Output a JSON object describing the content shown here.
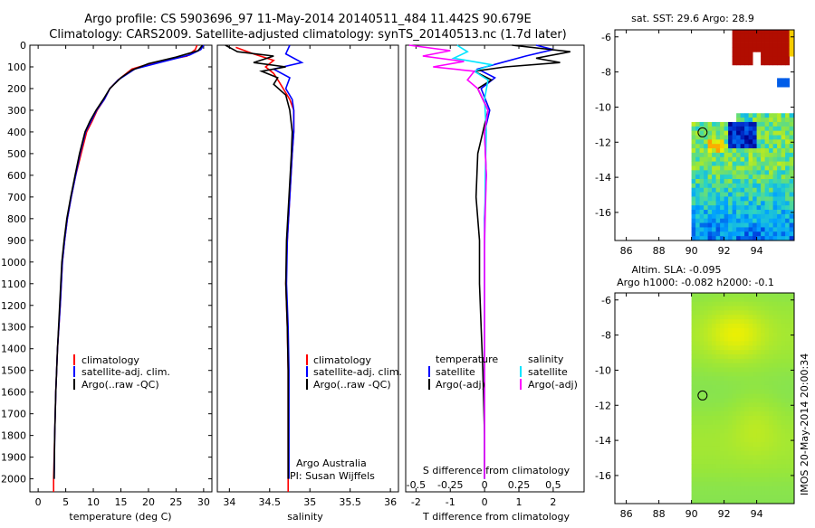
{
  "title": {
    "line1": "Argo profile: CS 5903696_97 11-May-2014 20140511_484 11.442S 90.679E",
    "line2": "Climatology: CARS2009. Satellite-adjusted climatology: synTS_20140513.nc (1.7d later)"
  },
  "colors": {
    "climatology": "#ff0000",
    "satellite": "#0000ff",
    "argo": "#000000",
    "sat_salinity": "#00e5ff",
    "argo_salinity": "#ff00ff"
  },
  "depth_axis": {
    "ylim": [
      0,
      2060
    ],
    "ticks": [
      "0",
      "100",
      "200",
      "300",
      "400",
      "500",
      "600",
      "700",
      "800",
      "900",
      "1000",
      "1100",
      "1200",
      "1300",
      "1400",
      "1500",
      "1600",
      "1700",
      "1800",
      "1900",
      "2000"
    ]
  },
  "legend": {
    "climatology": "climatology",
    "satellite_adj": "satellite-adj. clim.",
    "argo_raw": "Argo(..raw -QC)",
    "temperature": "temperature",
    "salinity": "salinity",
    "satellite": "satellite",
    "argo_adj": "Argo(-adj)"
  },
  "credit": {
    "line1": "Argo Australia",
    "line2": "PI: Susan Wijffels"
  },
  "chart_data": [
    {
      "type": "line",
      "name": "temperature-profile",
      "xlabel": "temperature (deg C)",
      "ylabel": "depth",
      "xlim": [
        -1.5,
        31.5
      ],
      "ylim": [
        0,
        2060
      ],
      "xticks": [
        0,
        5,
        10,
        15,
        20,
        25,
        30
      ],
      "series": [
        {
          "name": "climatology",
          "color": "#ff0000",
          "points": [
            [
              28.8,
              0
            ],
            [
              28.5,
              20
            ],
            [
              27,
              50
            ],
            [
              21,
              80
            ],
            [
              17,
              110
            ],
            [
              14.5,
              160
            ],
            [
              13,
              200
            ],
            [
              12,
              250
            ],
            [
              10.7,
              300
            ],
            [
              9.8,
              350
            ],
            [
              8.8,
              400
            ],
            [
              7.8,
              500
            ],
            [
              6.8,
              600
            ],
            [
              6,
              700
            ],
            [
              5.3,
              800
            ],
            [
              4.8,
              900
            ],
            [
              4.4,
              1000
            ],
            [
              4,
              1200
            ],
            [
              3.5,
              1400
            ],
            [
              3.2,
              1600
            ],
            [
              3,
              1800
            ],
            [
              2.8,
              2000
            ],
            [
              2.8,
              2060
            ]
          ]
        },
        {
          "name": "satellite-adj. clim.",
          "color": "#0000ff",
          "points": [
            [
              30,
              0
            ],
            [
              29.5,
              20
            ],
            [
              27.5,
              45
            ],
            [
              22,
              80
            ],
            [
              17.5,
              110
            ],
            [
              14.5,
              160
            ],
            [
              13,
              200
            ],
            [
              12,
              250
            ],
            [
              10.6,
              300
            ],
            [
              9.6,
              350
            ],
            [
              8.6,
              400
            ],
            [
              7.6,
              500
            ],
            [
              6.8,
              600
            ],
            [
              6,
              700
            ],
            [
              5.3,
              800
            ],
            [
              4.8,
              900
            ],
            [
              4.4,
              1000
            ],
            [
              4,
              1200
            ],
            [
              3.5,
              1400
            ],
            [
              3.2,
              1600
            ],
            [
              3,
              1800
            ],
            [
              2.9,
              2000
            ]
          ]
        },
        {
          "name": "Argo(..raw -QC)",
          "color": "#000000",
          "points": [
            [
              29.8,
              0
            ],
            [
              29,
              25
            ],
            [
              25,
              55
            ],
            [
              20,
              85
            ],
            [
              17,
              115
            ],
            [
              15,
              150
            ],
            [
              13,
              200
            ],
            [
              11.8,
              250
            ],
            [
              10.5,
              300
            ],
            [
              9.4,
              350
            ],
            [
              8.5,
              400
            ],
            [
              7.5,
              500
            ],
            [
              6.7,
              600
            ],
            [
              5.9,
              700
            ],
            [
              5.2,
              800
            ],
            [
              4.7,
              900
            ],
            [
              4.3,
              1000
            ],
            [
              3.9,
              1200
            ],
            [
              3.5,
              1400
            ],
            [
              3.2,
              1600
            ],
            [
              3,
              1800
            ],
            [
              2.9,
              2000
            ]
          ]
        }
      ]
    },
    {
      "type": "line",
      "name": "salinity-profile",
      "xlabel": "salinity",
      "ylabel": "depth",
      "xlim": [
        33.85,
        36.1
      ],
      "ylim": [
        0,
        2060
      ],
      "xticks": [
        "34",
        "34.5",
        "35",
        "35.5",
        "36"
      ],
      "series": [
        {
          "name": "climatology",
          "color": "#ff0000",
          "points": [
            [
              34.08,
              10
            ],
            [
              34.3,
              40
            ],
            [
              34.55,
              70
            ],
            [
              34.45,
              100
            ],
            [
              34.55,
              130
            ],
            [
              34.62,
              170
            ],
            [
              34.75,
              250
            ],
            [
              34.8,
              300
            ],
            [
              34.8,
              400
            ],
            [
              34.78,
              500
            ],
            [
              34.75,
              700
            ],
            [
              34.72,
              900
            ],
            [
              34.7,
              1100
            ],
            [
              34.72,
              1300
            ],
            [
              34.73,
              1500
            ],
            [
              34.73,
              1800
            ],
            [
              34.73,
              2060
            ]
          ]
        },
        {
          "name": "satellite-adj. clim.",
          "color": "#0000ff",
          "points": [
            [
              34.75,
              0
            ],
            [
              34.7,
              40
            ],
            [
              34.9,
              80
            ],
            [
              34.55,
              110
            ],
            [
              34.75,
              150
            ],
            [
              34.7,
              200
            ],
            [
              34.78,
              250
            ],
            [
              34.8,
              300
            ],
            [
              34.8,
              400
            ],
            [
              34.78,
              500
            ],
            [
              34.75,
              700
            ],
            [
              34.72,
              900
            ],
            [
              34.71,
              1100
            ],
            [
              34.73,
              1300
            ],
            [
              34.74,
              1500
            ],
            [
              34.74,
              1800
            ],
            [
              34.74,
              2000
            ]
          ]
        },
        {
          "name": "Argo(..raw -QC)",
          "color": "#000000",
          "points": [
            [
              33.95,
              0
            ],
            [
              34.1,
              30
            ],
            [
              34.55,
              50
            ],
            [
              34.3,
              80
            ],
            [
              34.7,
              100
            ],
            [
              34.4,
              120
            ],
            [
              34.6,
              150
            ],
            [
              34.55,
              180
            ],
            [
              34.7,
              230
            ],
            [
              34.75,
              300
            ],
            [
              34.78,
              400
            ],
            [
              34.77,
              500
            ],
            [
              34.74,
              700
            ],
            [
              34.71,
              900
            ],
            [
              34.7,
              1100
            ],
            [
              34.72,
              1300
            ],
            [
              34.73,
              1500
            ],
            [
              34.73,
              1800
            ],
            [
              34.73,
              2000
            ]
          ]
        }
      ]
    },
    {
      "type": "line",
      "name": "difference-profile",
      "xlabel": "T difference from climatology",
      "xlabel_top": "S difference from climatology",
      "xlim": [
        -2.3,
        2.9
      ],
      "ylim": [
        0,
        2060
      ],
      "xticks": [
        -2,
        -1,
        0,
        1,
        2
      ],
      "xticks_top": [
        [
          "-0.5",
          -2
        ],
        [
          "-0.25",
          -1
        ],
        [
          "0",
          0
        ],
        [
          "0.25",
          1
        ],
        [
          "0.5",
          2
        ]
      ],
      "series": [
        {
          "name": "temperature satellite",
          "color": "#0000ff",
          "points": [
            [
              1.5,
              0
            ],
            [
              2,
              20
            ],
            [
              1.2,
              50
            ],
            [
              0.5,
              80
            ],
            [
              -0.2,
              110
            ],
            [
              0.3,
              150
            ],
            [
              -0.1,
              200
            ],
            [
              0.15,
              300
            ],
            [
              0,
              400
            ],
            [
              0.05,
              600
            ],
            [
              0,
              800
            ],
            [
              0,
              1200
            ],
            [
              0,
              1600
            ],
            [
              0,
              2000
            ]
          ]
        },
        {
          "name": "temperature Argo(-adj)",
          "color": "#000000",
          "points": [
            [
              0.8,
              0
            ],
            [
              2.5,
              30
            ],
            [
              1.5,
              60
            ],
            [
              2.2,
              80
            ],
            [
              0.6,
              100
            ],
            [
              -0.3,
              120
            ],
            [
              0.2,
              160
            ],
            [
              -0.2,
              200
            ],
            [
              0.1,
              300
            ],
            [
              -0.2,
              500
            ],
            [
              -0.25,
              700
            ],
            [
              -0.15,
              900
            ],
            [
              -0.15,
              1100
            ],
            [
              -0.1,
              1300
            ],
            [
              -0.05,
              1500
            ],
            [
              0,
              1800
            ],
            [
              0,
              2000
            ]
          ]
        },
        {
          "name": "salinity satellite",
          "color": "#00e5ff",
          "points": [
            [
              -0.8,
              0
            ],
            [
              -0.5,
              30
            ],
            [
              -0.9,
              60
            ],
            [
              0.2,
              90
            ],
            [
              -0.3,
              120
            ],
            [
              0.1,
              160
            ],
            [
              0,
              250
            ],
            [
              0.05,
              400
            ],
            [
              0.02,
              600
            ],
            [
              0,
              1000
            ],
            [
              0,
              1500
            ],
            [
              0,
              2000
            ]
          ]
        },
        {
          "name": "salinity Argo(-adj)",
          "color": "#ff00ff",
          "points": [
            [
              -2.2,
              0
            ],
            [
              -1,
              25
            ],
            [
              -1.8,
              50
            ],
            [
              -0.6,
              75
            ],
            [
              -1.5,
              100
            ],
            [
              -0.3,
              120
            ],
            [
              -0.5,
              160
            ],
            [
              -0.2,
              200
            ],
            [
              0.1,
              300
            ],
            [
              0,
              400
            ],
            [
              0.05,
              600
            ],
            [
              0,
              900
            ],
            [
              0,
              1300
            ],
            [
              0,
              2000
            ]
          ]
        }
      ]
    },
    {
      "type": "heatmap",
      "name": "sst-map",
      "title": "sat. SST: 29.6  Argo: 28.9",
      "xlim": [
        85.3,
        96.3
      ],
      "ylim": [
        -17.6,
        -5.6
      ],
      "xticks": [
        86,
        88,
        90,
        92,
        94
      ],
      "yticks": [
        -6,
        -8,
        -10,
        -12,
        -14,
        -16
      ],
      "marker": {
        "lon": 90.679,
        "lat": -11.442
      }
    },
    {
      "type": "heatmap",
      "name": "sla-map",
      "title_line1": "Altim. SLA: -0.095",
      "title_line2": "Argo h1000: -0.082  h2000: -0.1",
      "xlim": [
        85.3,
        96.3
      ],
      "ylim": [
        -17.6,
        -5.6
      ],
      "xticks": [
        86,
        88,
        90,
        92,
        94
      ],
      "yticks": [
        -6,
        -8,
        -10,
        -12,
        -14,
        -16
      ],
      "marker": {
        "lon": 90.679,
        "lat": -11.442
      }
    }
  ],
  "footer": {
    "stamp": "IMOS 20-May-2014 20:00:34"
  }
}
